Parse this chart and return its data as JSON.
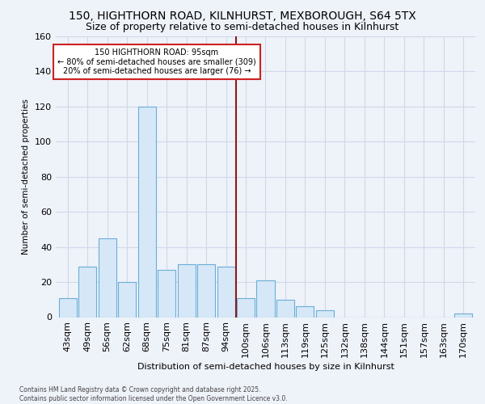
{
  "title_line1": "150, HIGHTHORN ROAD, KILNHURST, MEXBOROUGH, S64 5TX",
  "title_line2": "Size of property relative to semi-detached houses in Kilnhurst",
  "xlabel": "Distribution of semi-detached houses by size in Kilnhurst",
  "ylabel": "Number of semi-detached properties",
  "footer": "Contains HM Land Registry data © Crown copyright and database right 2025.\nContains public sector information licensed under the Open Government Licence v3.0.",
  "bar_labels": [
    "43sqm",
    "49sqm",
    "56sqm",
    "62sqm",
    "68sqm",
    "75sqm",
    "81sqm",
    "87sqm",
    "94sqm",
    "100sqm",
    "106sqm",
    "113sqm",
    "119sqm",
    "125sqm",
    "132sqm",
    "138sqm",
    "144sqm",
    "151sqm",
    "157sqm",
    "163sqm",
    "170sqm"
  ],
  "bar_values": [
    11,
    29,
    45,
    20,
    120,
    27,
    30,
    30,
    29,
    11,
    21,
    10,
    6,
    4,
    0,
    0,
    0,
    0,
    0,
    0,
    2
  ],
  "bar_color": "#d6e8f7",
  "bar_edge_color": "#6aaed6",
  "property_label": "150 HIGHTHORN ROAD: 95sqm",
  "annotation_line2": "← 80% of semi-detached houses are smaller (309)",
  "annotation_line3": "20% of semi-detached houses are larger (76) →",
  "annotation_box_color": "#ffffff",
  "annotation_box_edge": "#cc2222",
  "vline_color": "#8b1a1a",
  "ylim": [
    0,
    160
  ],
  "yticks": [
    0,
    20,
    40,
    60,
    80,
    100,
    120,
    140,
    160
  ],
  "bg_color": "#eef2f9",
  "grid_color": "#d0d8e8",
  "title1_fontsize": 10,
  "title2_fontsize": 9
}
